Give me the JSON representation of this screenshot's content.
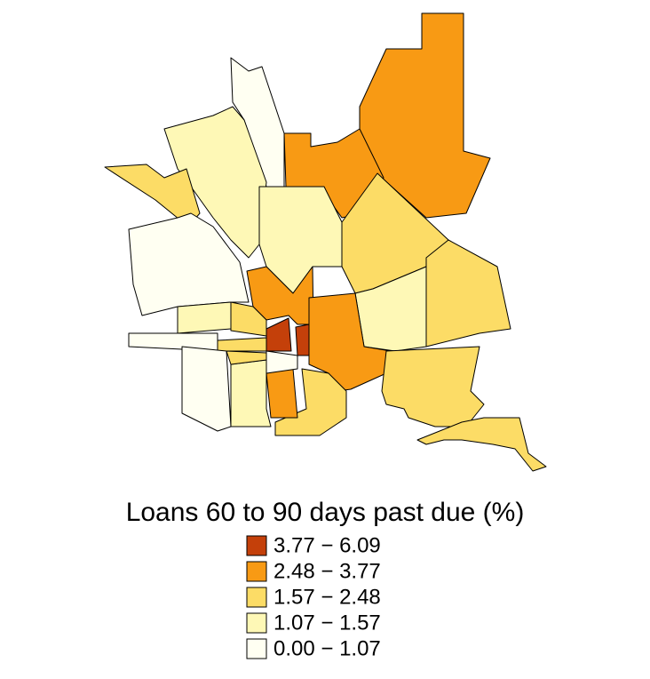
{
  "map": {
    "legend": {
      "title": "Loans 60 to 90 days past due (%)",
      "items": [
        {
          "label": "3.77 − 6.09",
          "color": "#c4400a"
        },
        {
          "label": "2.48 − 3.77",
          "color": "#f89a14"
        },
        {
          "label": "1.57 − 2.48",
          "color": "#fcdc66"
        },
        {
          "label": "1.07 − 1.57",
          "color": "#fef8b6"
        },
        {
          "label": "0.00 − 1.07",
          "color": "#fffff2"
        }
      ]
    }
  }
}
